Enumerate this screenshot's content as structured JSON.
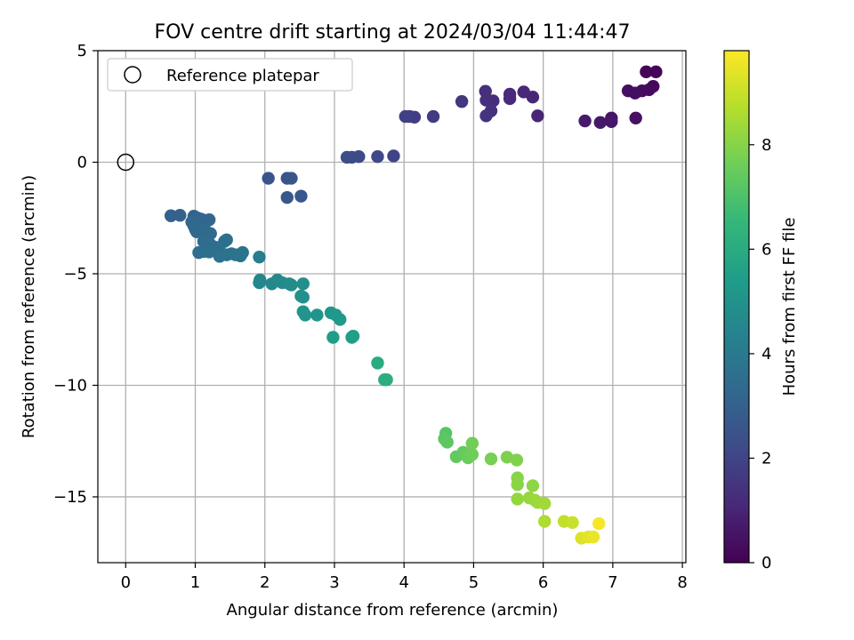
{
  "chart_data": {
    "type": "scatter",
    "title": "FOV centre drift starting at 2024/03/04 11:44:47",
    "xlabel": "Angular distance from reference (arcmin)",
    "ylabel": "Rotation from reference (arcmin)",
    "xlim": [
      -0.4,
      8.05
    ],
    "ylim": [
      -17.95,
      5.0
    ],
    "xticks": [
      0,
      1,
      2,
      3,
      4,
      5,
      6,
      7,
      8
    ],
    "yticks": [
      5,
      0,
      -5,
      -10,
      -15
    ],
    "ytick_labels": [
      "5",
      "0",
      "−5",
      "−10",
      "−15"
    ],
    "grid": true,
    "legend": {
      "placement": "top-left",
      "entries": [
        "Reference platepar"
      ]
    },
    "reference_point": {
      "x": 0,
      "y": 0,
      "label": "Reference platepar"
    },
    "colorbar": {
      "label": "Hours from first FF file",
      "range": [
        0,
        9.8
      ],
      "ticks": [
        0,
        2,
        4,
        6,
        8
      ],
      "colormap": "viridis",
      "stops": [
        "#440154",
        "#482878",
        "#3e4a89",
        "#31688e",
        "#26828e",
        "#1f9e89",
        "#35b779",
        "#6ece58",
        "#b5de2b",
        "#fde725"
      ]
    },
    "points": [
      {
        "x": 7.48,
        "y": 4.05,
        "t": 0.1
      },
      {
        "x": 7.62,
        "y": 4.05,
        "t": 0.15
      },
      {
        "x": 7.58,
        "y": 3.4,
        "t": 0.2
      },
      {
        "x": 7.52,
        "y": 3.25,
        "t": 0.25
      },
      {
        "x": 7.42,
        "y": 3.2,
        "t": 0.3
      },
      {
        "x": 7.32,
        "y": 3.1,
        "t": 0.35
      },
      {
        "x": 7.22,
        "y": 3.2,
        "t": 0.4
      },
      {
        "x": 7.33,
        "y": 1.98,
        "t": 0.45
      },
      {
        "x": 6.98,
        "y": 1.98,
        "t": 0.55
      },
      {
        "x": 6.98,
        "y": 1.82,
        "t": 0.6
      },
      {
        "x": 6.82,
        "y": 1.78,
        "t": 0.65
      },
      {
        "x": 6.6,
        "y": 1.85,
        "t": 0.7
      },
      {
        "x": 5.92,
        "y": 2.08,
        "t": 1.0
      },
      {
        "x": 5.85,
        "y": 2.92,
        "t": 1.05
      },
      {
        "x": 5.72,
        "y": 3.15,
        "t": 1.1
      },
      {
        "x": 5.52,
        "y": 3.05,
        "t": 1.15
      },
      {
        "x": 5.52,
        "y": 2.85,
        "t": 1.2
      },
      {
        "x": 5.28,
        "y": 2.75,
        "t": 1.25
      },
      {
        "x": 5.17,
        "y": 3.18,
        "t": 1.3
      },
      {
        "x": 5.18,
        "y": 2.78,
        "t": 1.35
      },
      {
        "x": 5.25,
        "y": 2.3,
        "t": 1.4
      },
      {
        "x": 5.18,
        "y": 2.08,
        "t": 1.45
      },
      {
        "x": 4.83,
        "y": 2.72,
        "t": 1.55
      },
      {
        "x": 4.42,
        "y": 2.05,
        "t": 1.7
      },
      {
        "x": 4.15,
        "y": 2.02,
        "t": 1.75
      },
      {
        "x": 4.08,
        "y": 2.05,
        "t": 1.8
      },
      {
        "x": 4.02,
        "y": 2.05,
        "t": 1.85
      },
      {
        "x": 3.85,
        "y": 0.28,
        "t": 2.0
      },
      {
        "x": 3.62,
        "y": 0.25,
        "t": 2.1
      },
      {
        "x": 3.35,
        "y": 0.25,
        "t": 2.2
      },
      {
        "x": 3.25,
        "y": 0.22,
        "t": 2.25
      },
      {
        "x": 3.18,
        "y": 0.22,
        "t": 2.3
      },
      {
        "x": 2.05,
        "y": -0.72,
        "t": 2.5
      },
      {
        "x": 2.32,
        "y": -0.72,
        "t": 2.55
      },
      {
        "x": 2.38,
        "y": -0.72,
        "t": 2.6
      },
      {
        "x": 2.32,
        "y": -1.58,
        "t": 2.65
      },
      {
        "x": 2.52,
        "y": -1.52,
        "t": 2.7
      },
      {
        "x": 0.65,
        "y": -2.4,
        "t": 3.0
      },
      {
        "x": 0.78,
        "y": -2.38,
        "t": 3.05
      },
      {
        "x": 0.98,
        "y": -2.42,
        "t": 3.1
      },
      {
        "x": 1.03,
        "y": -2.5,
        "t": 3.12
      },
      {
        "x": 1.08,
        "y": -2.55,
        "t": 3.15
      },
      {
        "x": 1.12,
        "y": -2.6,
        "t": 3.18
      },
      {
        "x": 1.2,
        "y": -2.58,
        "t": 3.2
      },
      {
        "x": 0.95,
        "y": -2.68,
        "t": 3.22
      },
      {
        "x": 0.98,
        "y": -2.85,
        "t": 3.25
      },
      {
        "x": 1.0,
        "y": -3.0,
        "t": 3.28
      },
      {
        "x": 1.02,
        "y": -3.12,
        "t": 3.3
      },
      {
        "x": 1.1,
        "y": -2.92,
        "t": 3.32
      },
      {
        "x": 1.15,
        "y": -3.08,
        "t": 3.35
      },
      {
        "x": 1.22,
        "y": -3.2,
        "t": 3.38
      },
      {
        "x": 1.18,
        "y": -3.35,
        "t": 3.4
      },
      {
        "x": 1.12,
        "y": -3.55,
        "t": 3.42
      },
      {
        "x": 1.22,
        "y": -3.7,
        "t": 3.45
      },
      {
        "x": 1.3,
        "y": -3.82,
        "t": 3.48
      },
      {
        "x": 1.12,
        "y": -4.0,
        "t": 3.5
      },
      {
        "x": 1.05,
        "y": -4.05,
        "t": 3.52
      },
      {
        "x": 1.2,
        "y": -4.02,
        "t": 3.55
      },
      {
        "x": 1.35,
        "y": -3.98,
        "t": 3.58
      },
      {
        "x": 1.42,
        "y": -3.55,
        "t": 3.6
      },
      {
        "x": 1.45,
        "y": -3.48,
        "t": 3.62
      },
      {
        "x": 1.35,
        "y": -4.22,
        "t": 3.65
      },
      {
        "x": 1.45,
        "y": -4.15,
        "t": 3.68
      },
      {
        "x": 1.52,
        "y": -4.1,
        "t": 3.7
      },
      {
        "x": 1.58,
        "y": -4.15,
        "t": 3.72
      },
      {
        "x": 1.65,
        "y": -4.2,
        "t": 3.75
      },
      {
        "x": 1.68,
        "y": -4.05,
        "t": 3.78
      },
      {
        "x": 1.92,
        "y": -4.25,
        "t": 4.2
      },
      {
        "x": 1.93,
        "y": -5.28,
        "t": 4.5
      },
      {
        "x": 1.92,
        "y": -5.4,
        "t": 4.55
      },
      {
        "x": 2.1,
        "y": -5.45,
        "t": 4.6
      },
      {
        "x": 2.18,
        "y": -5.28,
        "t": 4.65
      },
      {
        "x": 2.25,
        "y": -5.4,
        "t": 4.7
      },
      {
        "x": 2.35,
        "y": -5.45,
        "t": 4.75
      },
      {
        "x": 2.38,
        "y": -5.5,
        "t": 4.8
      },
      {
        "x": 2.55,
        "y": -5.45,
        "t": 4.85
      },
      {
        "x": 2.52,
        "y": -6.0,
        "t": 4.9
      },
      {
        "x": 2.55,
        "y": -6.05,
        "t": 4.95
      },
      {
        "x": 2.55,
        "y": -6.7,
        "t": 5.0
      },
      {
        "x": 2.58,
        "y": -6.85,
        "t": 5.05
      },
      {
        "x": 2.75,
        "y": -6.85,
        "t": 5.1
      },
      {
        "x": 2.95,
        "y": -6.75,
        "t": 5.15
      },
      {
        "x": 3.02,
        "y": -6.85,
        "t": 5.2
      },
      {
        "x": 3.08,
        "y": -7.05,
        "t": 5.25
      },
      {
        "x": 2.98,
        "y": -7.85,
        "t": 5.4
      },
      {
        "x": 3.25,
        "y": -7.85,
        "t": 5.45
      },
      {
        "x": 3.27,
        "y": -7.8,
        "t": 5.5
      },
      {
        "x": 3.62,
        "y": -9.0,
        "t": 6.0
      },
      {
        "x": 3.72,
        "y": -9.75,
        "t": 6.1
      },
      {
        "x": 3.75,
        "y": -9.75,
        "t": 6.15
      },
      {
        "x": 4.6,
        "y": -12.15,
        "t": 7.2
      },
      {
        "x": 4.58,
        "y": -12.4,
        "t": 7.25
      },
      {
        "x": 4.62,
        "y": -12.55,
        "t": 7.3
      },
      {
        "x": 4.75,
        "y": -13.2,
        "t": 7.4
      },
      {
        "x": 4.85,
        "y": -13.0,
        "t": 7.45
      },
      {
        "x": 4.9,
        "y": -13.1,
        "t": 7.5
      },
      {
        "x": 4.92,
        "y": -13.25,
        "t": 7.55
      },
      {
        "x": 4.98,
        "y": -13.1,
        "t": 7.6
      },
      {
        "x": 4.98,
        "y": -12.6,
        "t": 7.65
      },
      {
        "x": 5.25,
        "y": -13.3,
        "t": 7.75
      },
      {
        "x": 5.48,
        "y": -13.22,
        "t": 7.85
      },
      {
        "x": 5.62,
        "y": -13.35,
        "t": 7.9
      },
      {
        "x": 5.63,
        "y": -14.15,
        "t": 8.0
      },
      {
        "x": 5.63,
        "y": -14.45,
        "t": 8.05
      },
      {
        "x": 5.85,
        "y": -14.5,
        "t": 8.1
      },
      {
        "x": 5.63,
        "y": -15.1,
        "t": 8.2
      },
      {
        "x": 5.8,
        "y": -15.05,
        "t": 8.25
      },
      {
        "x": 5.88,
        "y": -15.15,
        "t": 8.3
      },
      {
        "x": 5.92,
        "y": -15.25,
        "t": 8.35
      },
      {
        "x": 6.02,
        "y": -15.3,
        "t": 8.4
      },
      {
        "x": 6.02,
        "y": -16.1,
        "t": 8.6
      },
      {
        "x": 6.3,
        "y": -16.1,
        "t": 8.9
      },
      {
        "x": 6.42,
        "y": -16.15,
        "t": 9.0
      },
      {
        "x": 6.55,
        "y": -16.85,
        "t": 9.3
      },
      {
        "x": 6.65,
        "y": -16.8,
        "t": 9.4
      },
      {
        "x": 6.72,
        "y": -16.8,
        "t": 9.5
      },
      {
        "x": 6.8,
        "y": -16.2,
        "t": 9.7
      }
    ]
  }
}
